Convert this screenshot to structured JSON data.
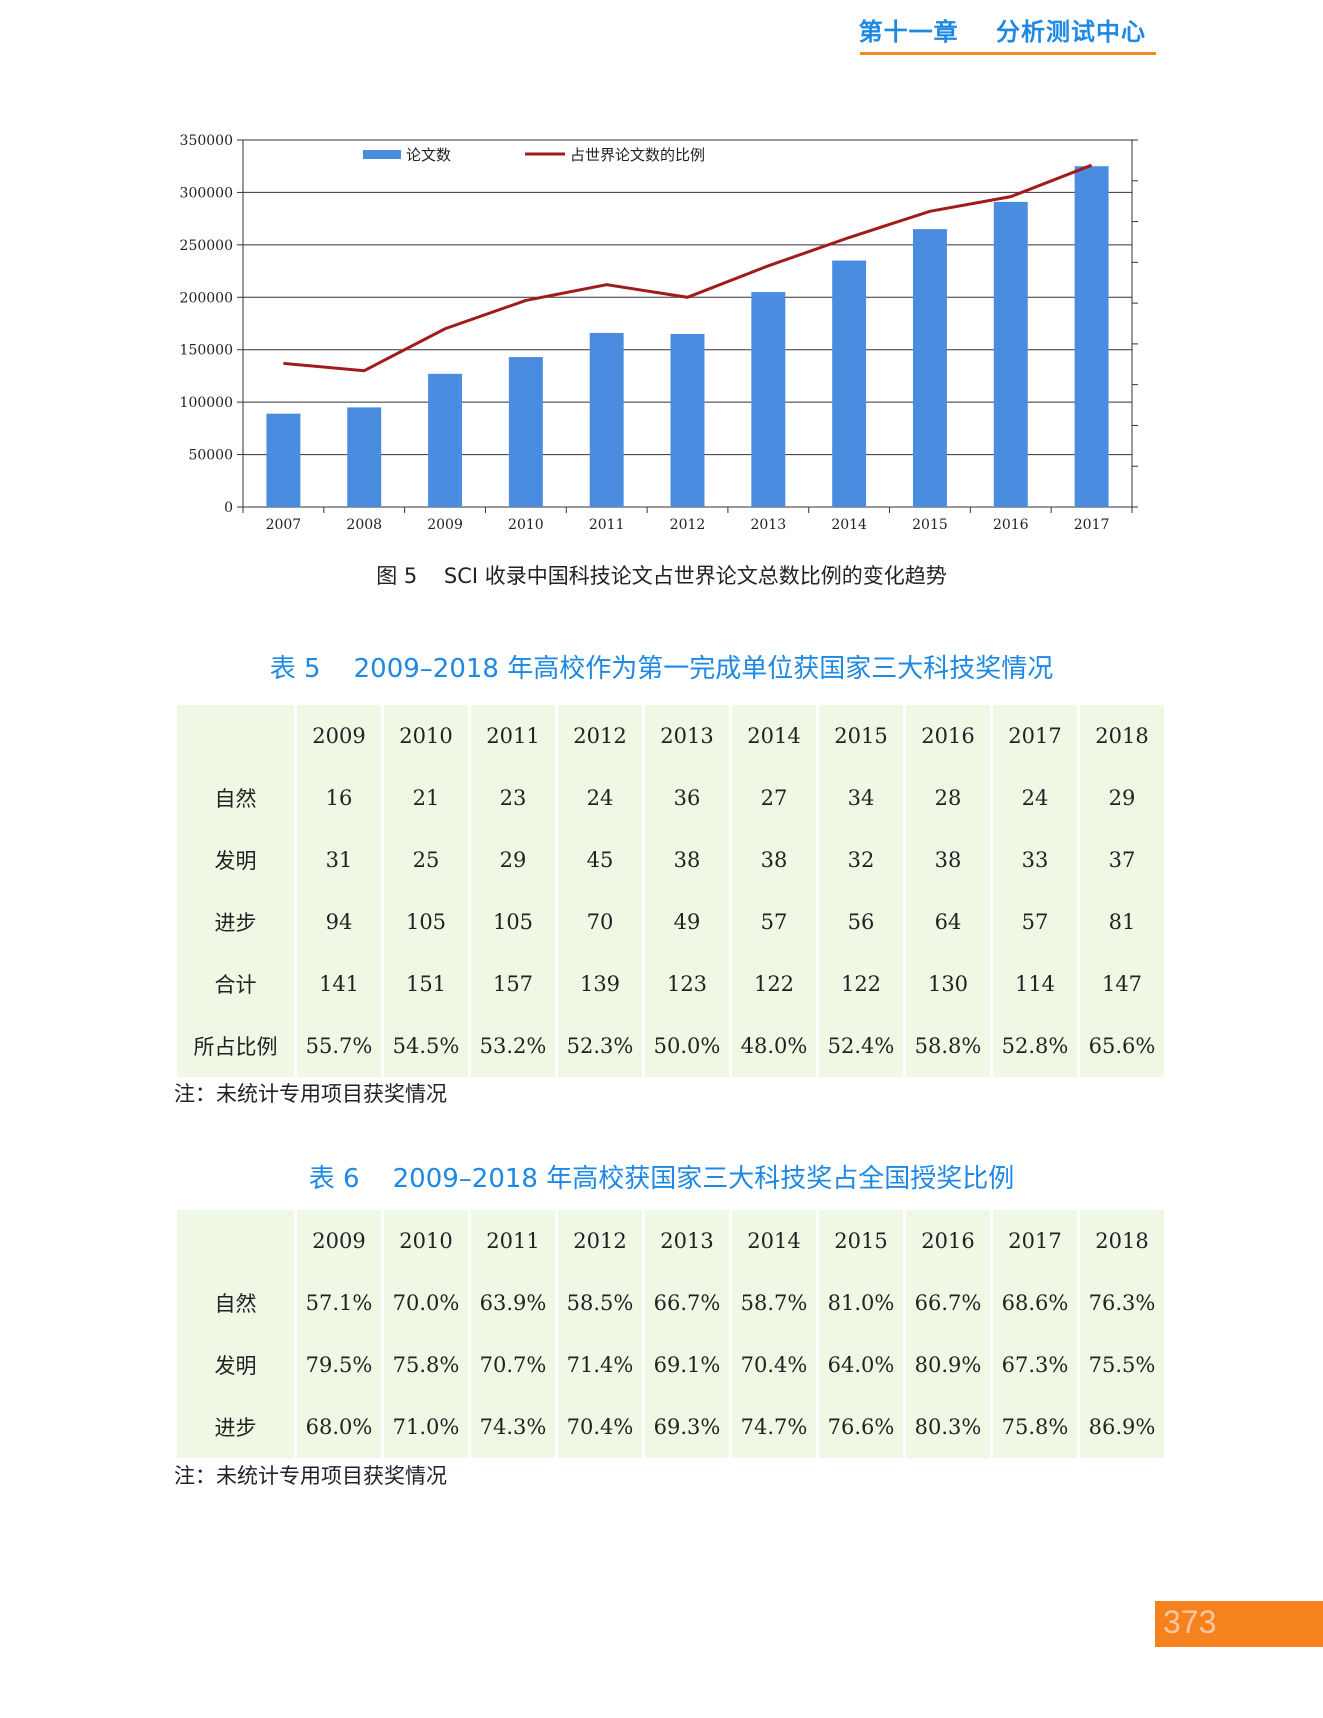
{
  "header": {
    "chapter": "第十一章    分析测试中心"
  },
  "figure": {
    "caption": "图 5    SCI 收录中国科技论文占世界论文总数比例的变化趋势"
  },
  "chart_data": {
    "type": "bar",
    "categories": [
      "2007",
      "2008",
      "2009",
      "2010",
      "2011",
      "2012",
      "2013",
      "2014",
      "2015",
      "2016",
      "2017"
    ],
    "ylim": [
      0,
      350000
    ],
    "yticks": [
      "350000",
      "300000",
      "250000",
      "200000",
      "150000",
      "100000",
      "50000",
      "0"
    ],
    "series": [
      {
        "name": "论文数",
        "type": "bar",
        "color": "#4a8de0",
        "values": [
          89000,
          95000,
          127000,
          143000,
          166000,
          165000,
          205000,
          235000,
          265000,
          291000,
          325000
        ]
      },
      {
        "name": "占世界论文数的比例",
        "type": "line",
        "color": "#a01c1c",
        "values": [
          137000,
          130000,
          170000,
          197000,
          212000,
          200000,
          230000,
          257000,
          282000,
          296000,
          326000
        ]
      }
    ],
    "legend_position": "top",
    "grid": true
  },
  "table5": {
    "title": "表 5    2009–2018 年高校作为第一完成单位获国家三大科技奖情况",
    "header": [
      "",
      "2009",
      "2010",
      "2011",
      "2012",
      "2013",
      "2014",
      "2015",
      "2016",
      "2017",
      "2018"
    ],
    "rows": [
      [
        "自然",
        "16",
        "21",
        "23",
        "24",
        "36",
        "27",
        "34",
        "28",
        "24",
        "29"
      ],
      [
        "发明",
        "31",
        "25",
        "29",
        "45",
        "38",
        "38",
        "32",
        "38",
        "33",
        "37"
      ],
      [
        "进步",
        "94",
        "105",
        "105",
        "70",
        "49",
        "57",
        "56",
        "64",
        "57",
        "81"
      ],
      [
        "合计",
        "141",
        "151",
        "157",
        "139",
        "123",
        "122",
        "122",
        "130",
        "114",
        "147"
      ],
      [
        "所占比例",
        "55.7%",
        "54.5%",
        "53.2%",
        "52.3%",
        "50.0%",
        "48.0%",
        "52.4%",
        "58.8%",
        "52.8%",
        "65.6%"
      ]
    ],
    "note": "注：未统计专用项目获奖情况"
  },
  "table6": {
    "title": "表 6    2009–2018 年高校获国家三大科技奖占全国授奖比例",
    "header": [
      "",
      "2009",
      "2010",
      "2011",
      "2012",
      "2013",
      "2014",
      "2015",
      "2016",
      "2017",
      "2018"
    ],
    "rows": [
      [
        "自然",
        "57.1%",
        "70.0%",
        "63.9%",
        "58.5%",
        "66.7%",
        "58.7%",
        "81.0%",
        "66.7%",
        "68.6%",
        "76.3%"
      ],
      [
        "发明",
        "79.5%",
        "75.8%",
        "70.7%",
        "71.4%",
        "69.1%",
        "70.4%",
        "64.0%",
        "80.9%",
        "67.3%",
        "75.5%"
      ],
      [
        "进步",
        "68.0%",
        "71.0%",
        "74.3%",
        "70.4%",
        "69.3%",
        "74.7%",
        "76.6%",
        "80.3%",
        "75.8%",
        "86.9%"
      ]
    ],
    "note": "注：未统计专用项目获奖情况"
  },
  "page": {
    "number": "373"
  },
  "colors": {
    "accent": "#1e88e5",
    "orange": "#f5821f",
    "table_bg": "#eef8e4"
  }
}
